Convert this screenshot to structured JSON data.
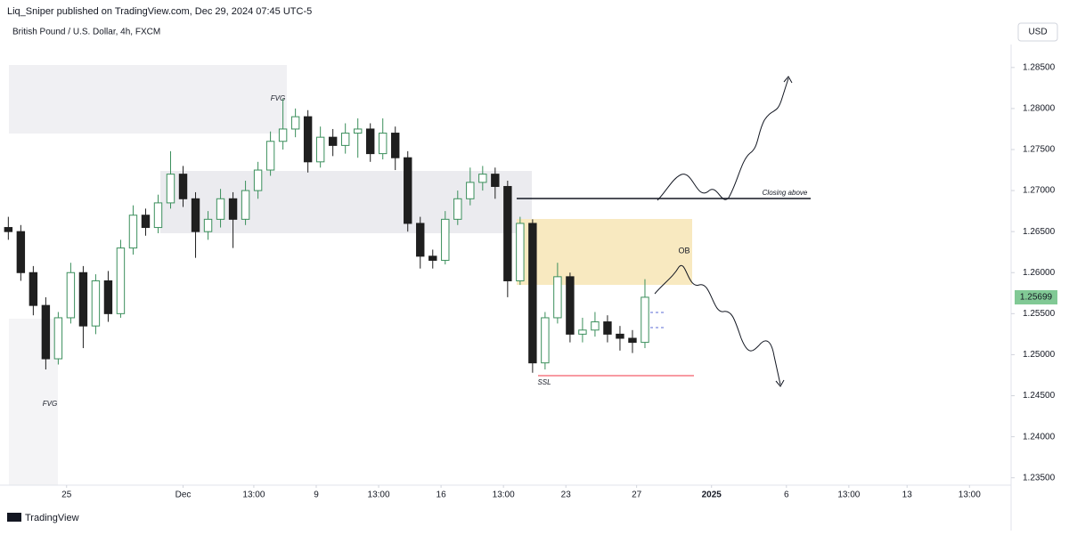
{
  "header": {
    "publisher": "Liq_Sniper published on TradingView.com, Dec 29, 2024 07:45 UTC-5",
    "symbol": "British Pound / U.S. Dollar, 4h, FXCM",
    "currency": "USD"
  },
  "footer": {
    "brand": "TradingView"
  },
  "chart_data": {
    "type": "candlestick",
    "x": [
      2,
      5,
      8,
      11,
      14,
      17,
      20,
      23,
      26,
      29,
      32,
      35,
      38,
      41,
      44,
      47,
      50,
      53,
      56,
      59,
      62,
      65,
      68,
      71,
      74,
      77,
      80,
      83,
      86,
      89,
      92,
      95,
      98,
      101,
      104,
      107,
      110,
      113,
      116,
      119,
      122,
      125,
      128,
      131,
      134,
      137,
      140,
      143,
      146,
      149,
      152,
      155
    ],
    "open": [
      1.2655,
      1.265,
      1.26,
      1.256,
      1.2495,
      1.2545,
      1.26,
      1.2535,
      1.259,
      1.255,
      1.263,
      1.267,
      1.2655,
      1.2685,
      1.272,
      1.269,
      1.265,
      1.2665,
      1.269,
      1.2665,
      1.27,
      1.2725,
      1.276,
      1.2775,
      1.279,
      1.2735,
      1.2765,
      1.2755,
      1.277,
      1.2775,
      1.2745,
      1.277,
      1.274,
      1.266,
      1.262,
      1.2615,
      1.2665,
      1.269,
      1.271,
      1.272,
      1.2705,
      1.259,
      1.266,
      1.249,
      1.2545,
      1.2595,
      1.2525,
      1.253,
      1.254,
      1.2525,
      1.252,
      1.2515
    ],
    "high": [
      1.2668,
      1.2658,
      1.2608,
      1.257,
      1.2552,
      1.2612,
      1.2608,
      1.2598,
      1.2602,
      1.264,
      1.2682,
      1.2678,
      1.2695,
      1.2748,
      1.273,
      1.2698,
      1.2675,
      1.2702,
      1.2698,
      1.2712,
      1.2735,
      1.2772,
      1.2812,
      1.28,
      1.2798,
      1.2778,
      1.2775,
      1.2782,
      1.2788,
      1.2782,
      1.2788,
      1.2778,
      1.2748,
      1.2668,
      1.2628,
      1.2675,
      1.27,
      1.2728,
      1.273,
      1.2728,
      1.2712,
      1.2668,
      1.2665,
      1.2552,
      1.2612,
      1.26,
      1.2545,
      1.2552,
      1.2548,
      1.2535,
      1.253,
      1.2592
    ],
    "low": [
      1.264,
      1.259,
      1.2548,
      1.2482,
      1.2488,
      1.2538,
      1.2508,
      1.2525,
      1.254,
      1.2545,
      1.2622,
      1.2645,
      1.2648,
      1.2678,
      1.268,
      1.2618,
      1.264,
      1.2655,
      1.263,
      1.2658,
      1.269,
      1.2718,
      1.275,
      1.2765,
      1.2722,
      1.2728,
      1.2742,
      1.2745,
      1.274,
      1.2735,
      1.2738,
      1.2725,
      1.265,
      1.2605,
      1.2605,
      1.261,
      1.2658,
      1.2682,
      1.27,
      1.269,
      1.257,
      1.2585,
      1.2478,
      1.2482,
      1.2538,
      1.2515,
      1.2515,
      1.2522,
      1.2515,
      1.2505,
      1.2502,
      1.2508
    ],
    "close": [
      1.265,
      1.26,
      1.256,
      1.2495,
      1.2545,
      1.26,
      1.2535,
      1.259,
      1.255,
      1.263,
      1.267,
      1.2655,
      1.2685,
      1.272,
      1.269,
      1.265,
      1.2665,
      1.269,
      1.2665,
      1.27,
      1.2725,
      1.276,
      1.2775,
      1.279,
      1.2735,
      1.2765,
      1.2755,
      1.277,
      1.2775,
      1.2745,
      1.277,
      1.274,
      1.266,
      1.262,
      1.2615,
      1.2665,
      1.269,
      1.271,
      1.272,
      1.2705,
      1.259,
      1.266,
      1.249,
      1.2545,
      1.2595,
      1.2525,
      1.253,
      1.254,
      1.2525,
      1.252,
      1.2515,
      1.257
    ],
    "up_color": "#3b8f5c",
    "down_color": "#1f1f1f",
    "xlim": [
      0,
      243
    ],
    "xticks": [
      {
        "value": 16,
        "label": "25"
      },
      {
        "value": 44,
        "label": "Dec"
      },
      {
        "value": 61,
        "label": "13:00"
      },
      {
        "value": 76,
        "label": "9"
      },
      {
        "value": 91,
        "label": "13:00"
      },
      {
        "value": 106,
        "label": "16"
      },
      {
        "value": 121,
        "label": "13:00"
      },
      {
        "value": 136,
        "label": "23"
      },
      {
        "value": 153,
        "label": "27"
      },
      {
        "value": 171,
        "label": "2025"
      },
      {
        "value": 189,
        "label": "6"
      },
      {
        "value": 204,
        "label": "13:00"
      },
      {
        "value": 218,
        "label": "13"
      },
      {
        "value": 233,
        "label": "13:00"
      }
    ],
    "ylim": [
      1.2341,
      1.2878
    ],
    "yticks": [
      {
        "value": 1.235,
        "label": "1.23500"
      },
      {
        "value": 1.24,
        "label": "1.24000"
      },
      {
        "value": 1.245,
        "label": "1.24500"
      },
      {
        "value": 1.25,
        "label": "1.25000"
      },
      {
        "value": 1.255,
        "label": "1.25500"
      },
      {
        "value": 1.26,
        "label": "1.26000"
      },
      {
        "value": 1.265,
        "label": "1.26500"
      },
      {
        "value": 1.27,
        "label": "1.27000"
      },
      {
        "value": 1.275,
        "label": "1.27500"
      },
      {
        "value": 1.28,
        "label": "1.28000"
      },
      {
        "value": 1.285,
        "label": "1.28500"
      }
    ],
    "last_price": 1.25699,
    "annotations": [
      "FVG",
      "FVG",
      "OB",
      "Closing above",
      "SSL"
    ]
  }
}
